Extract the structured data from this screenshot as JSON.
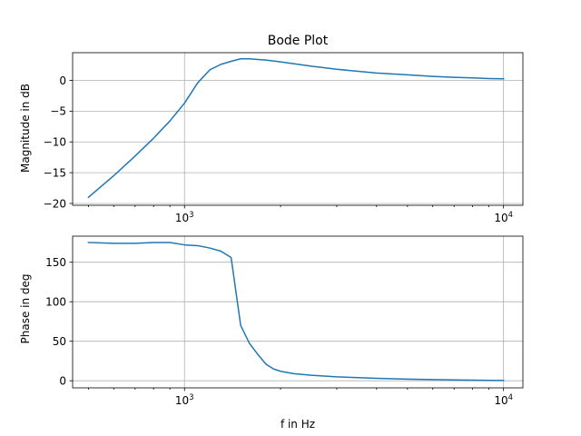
{
  "chart_data": [
    {
      "type": "line",
      "title": "Bode Plot",
      "xlabel": "",
      "ylabel": "Magnitude in dB",
      "xscale": "log",
      "xlim": [
        446,
        11500
      ],
      "ylim": [
        -20.3,
        4.5
      ],
      "grid": true,
      "color": "#1f77b4",
      "xticks": [
        {
          "v": 1000,
          "base": "10",
          "exp": "3"
        },
        {
          "v": 10000,
          "base": "10",
          "exp": "4"
        }
      ],
      "yticks": [
        {
          "v": 0,
          "label": "0"
        },
        {
          "v": -5,
          "label": "−5"
        },
        {
          "v": -10,
          "label": "−10"
        },
        {
          "v": -15,
          "label": "−15"
        },
        {
          "v": -20,
          "label": "−20"
        }
      ],
      "x": [
        500,
        600,
        700,
        800,
        900,
        1000,
        1100,
        1200,
        1300,
        1400,
        1500,
        1600,
        1700,
        1800,
        2000,
        2500,
        3000,
        4000,
        5000,
        6000,
        7000,
        8000,
        9000,
        10000
      ],
      "y": [
        -19.0,
        -15.5,
        -12.3,
        -9.4,
        -6.6,
        -3.7,
        -0.4,
        1.7,
        2.6,
        3.1,
        3.5,
        3.5,
        3.4,
        3.3,
        3.0,
        2.3,
        1.8,
        1.2,
        0.9,
        0.65,
        0.5,
        0.4,
        0.3,
        0.25
      ]
    },
    {
      "type": "line",
      "title": "",
      "xlabel": "f in Hz",
      "ylabel": "Phase in deg",
      "xscale": "log",
      "xlim": [
        446,
        11500
      ],
      "ylim": [
        -9,
        183
      ],
      "grid": true,
      "color": "#1f77b4",
      "xticks": [
        {
          "v": 1000,
          "base": "10",
          "exp": "3"
        },
        {
          "v": 10000,
          "base": "10",
          "exp": "4"
        }
      ],
      "yticks": [
        {
          "v": 0,
          "label": "0"
        },
        {
          "v": 50,
          "label": "50"
        },
        {
          "v": 100,
          "label": "100"
        },
        {
          "v": 150,
          "label": "150"
        }
      ],
      "x": [
        500,
        600,
        700,
        800,
        900,
        1000,
        1100,
        1200,
        1300,
        1400,
        1500,
        1600,
        1700,
        1800,
        1900,
        2000,
        2200,
        2500,
        3000,
        3500,
        4000,
        5000,
        6000,
        7000,
        8000,
        9000,
        10000
      ],
      "y": [
        175,
        174,
        174,
        175,
        175,
        172,
        171,
        168,
        164,
        156,
        70,
        47,
        33,
        21,
        15,
        12,
        9,
        7,
        5,
        4,
        3,
        2,
        1.5,
        1,
        0.7,
        0.5,
        0.3
      ]
    }
  ]
}
